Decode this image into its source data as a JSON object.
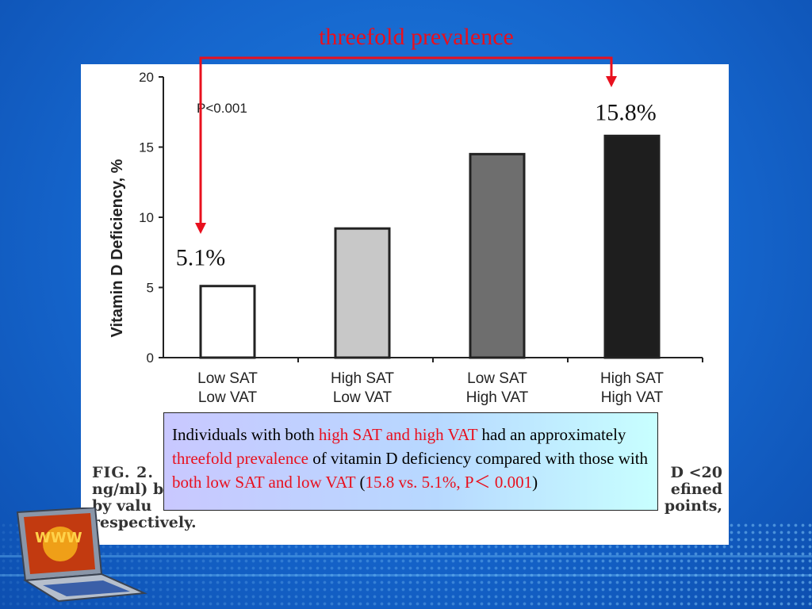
{
  "slide": {
    "top_title": "threefold prevalence",
    "callout": {
      "t1": "Individuals with both ",
      "r1": "high SAT and high VAT",
      "t2": " had an approximately ",
      "r2": "threefold prevalence",
      "t3": " of vitamin D deficiency compared with those with ",
      "r3": "both low SAT and low VAT",
      "t4": " (",
      "r4": "15.8 vs. 5.1%, P＜ 0.001",
      "t5": ")"
    },
    "caption": {
      "fig": "FIG. 2.",
      "line1_right": "D <20",
      "line2_left": "ng/ml) b",
      "line2_right": "efined",
      "line3_left": "by valu",
      "line3_right": "points,",
      "line4": "respectively."
    }
  },
  "chart_data": {
    "type": "bar",
    "categories": [
      {
        "line1": "Low SAT",
        "line2": "Low VAT"
      },
      {
        "line1": "High SAT",
        "line2": "Low VAT"
      },
      {
        "line1": "Low SAT",
        "line2": "High VAT"
      },
      {
        "line1": "High SAT",
        "line2": "High VAT"
      }
    ],
    "values": [
      5.1,
      9.2,
      14.5,
      15.8
    ],
    "bar_colors": [
      "#ffffff",
      "#c8c8c8",
      "#6e6e6e",
      "#1e1e1e"
    ],
    "ylabel": "Vitamin D Deficiency, %",
    "ylim": [
      0,
      20
    ],
    "yticks": [
      0,
      5,
      10,
      15,
      20
    ],
    "annotation": "P<0.001",
    "value_labels": {
      "low": "5.1%",
      "high": "15.8%"
    },
    "arrow_color": "#e8101e"
  }
}
